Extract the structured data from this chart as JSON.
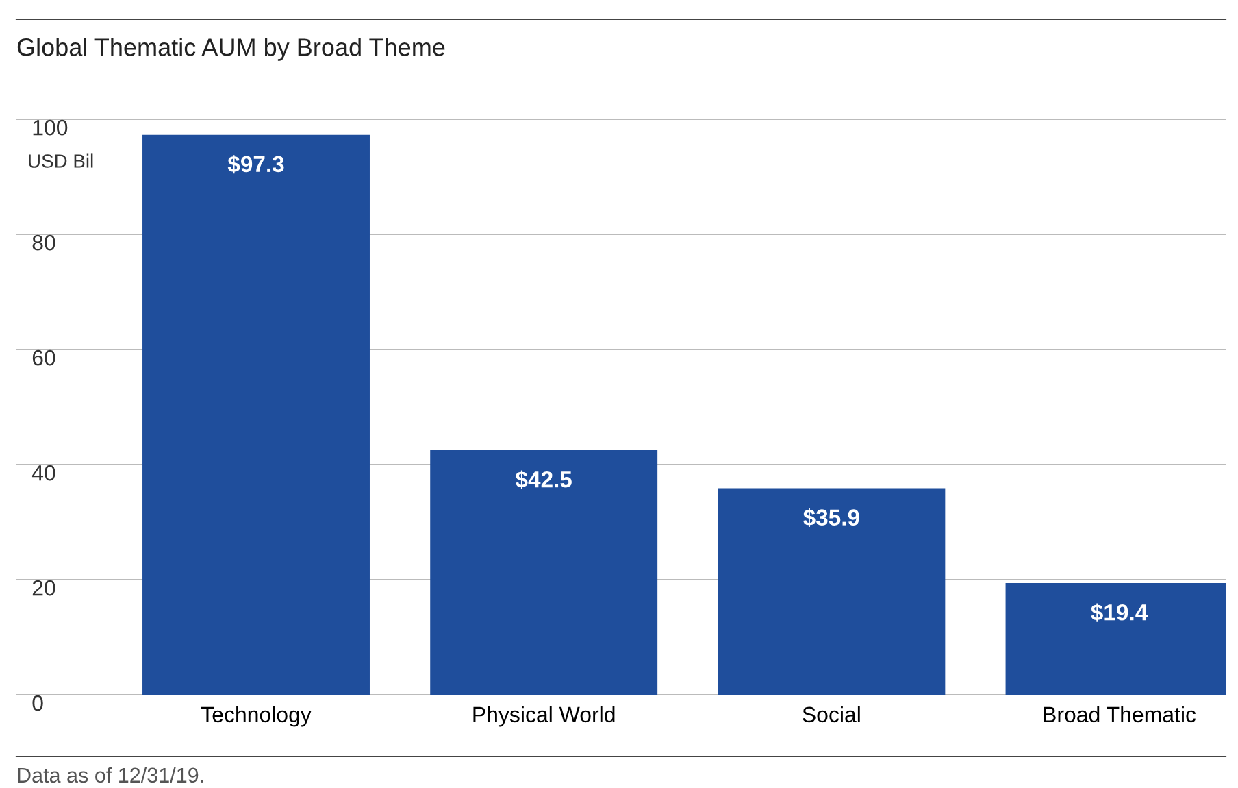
{
  "chart_data": {
    "type": "bar",
    "title": "Global Thematic AUM by Broad Theme",
    "ylabel": "USD Bil",
    "categories": [
      "Technology",
      "Physical World",
      "Social",
      "Broad Thematic"
    ],
    "values": [
      97.3,
      42.5,
      35.9,
      19.4
    ],
    "value_labels": [
      "$97.3",
      "$42.5",
      "$35.9",
      "$19.4"
    ],
    "color": "#1f4e9c",
    "ylim": [
      0,
      100
    ],
    "yticks": [
      0,
      20,
      40,
      60,
      80,
      100
    ],
    "grid": "y",
    "annotations": [
      "Data as of 12/31/19."
    ]
  }
}
